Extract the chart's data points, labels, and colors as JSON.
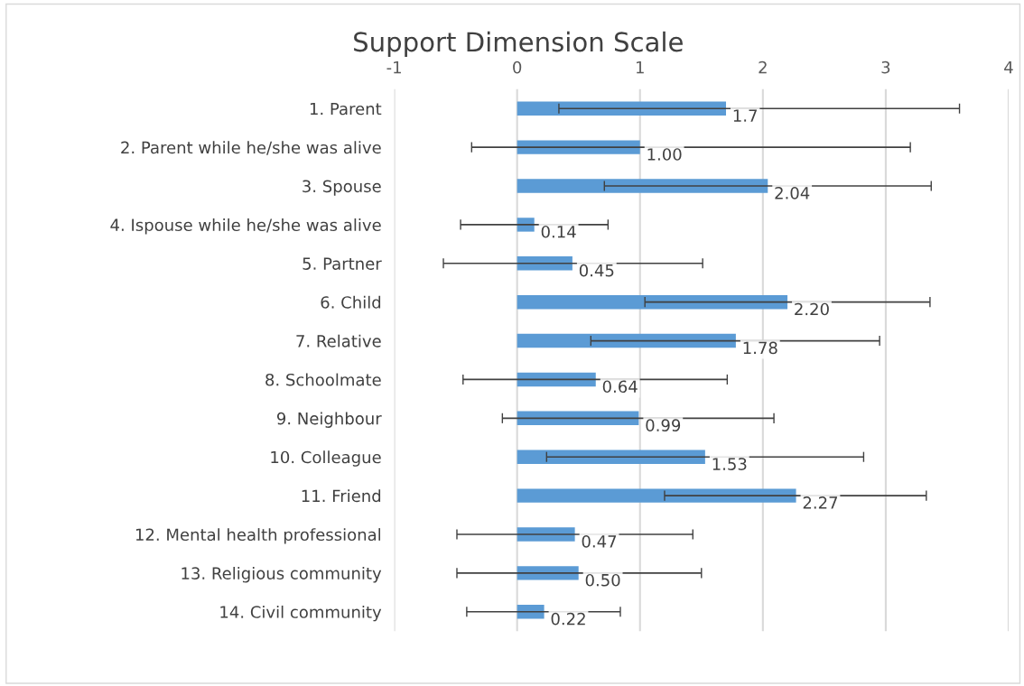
{
  "chart_data": {
    "type": "bar",
    "orientation": "horizontal",
    "title": "Support Dimension Scale",
    "categories": [
      "1. Parent",
      "2. Parent while he/she was alive",
      "3. Spouse",
      "4. Ispouse while he/she was alive",
      "5. Partner",
      "6. Child",
      "7. Relative",
      "8. Schoolmate",
      "9. Neighbour",
      "10. Colleague",
      "11. Friend",
      "12. Mental health professional",
      "13. Religious community",
      "14. Civil community"
    ],
    "values": [
      1.7,
      1.0,
      2.04,
      0.14,
      0.45,
      2.2,
      1.78,
      0.64,
      0.99,
      1.53,
      2.27,
      0.47,
      0.5,
      0.22
    ],
    "value_labels": [
      "1.7",
      "1.00",
      "2.04",
      "0.14",
      "0.45",
      "2.20",
      "1.78",
      "0.64",
      "0.99",
      "1.53",
      "2.27",
      "0.47",
      "0.50",
      "0.22"
    ],
    "errors": [
      [
        0.34,
        3.6
      ],
      [
        -0.37,
        3.2
      ],
      [
        0.71,
        3.37
      ],
      [
        -0.46,
        0.74
      ],
      [
        -0.6,
        1.51
      ],
      [
        1.04,
        3.36
      ],
      [
        0.6,
        2.95
      ],
      [
        -0.44,
        1.71
      ],
      [
        -0.12,
        2.09
      ],
      [
        0.24,
        2.82
      ],
      [
        1.2,
        3.33
      ],
      [
        -0.49,
        1.43
      ],
      [
        -0.49,
        1.5
      ],
      [
        -0.41,
        0.84
      ]
    ],
    "color": "#5b9bd5",
    "xlim": [
      -1,
      4
    ],
    "xticks": [
      -1,
      0,
      1,
      2,
      3,
      4
    ],
    "grid": "x",
    "legend": false
  }
}
